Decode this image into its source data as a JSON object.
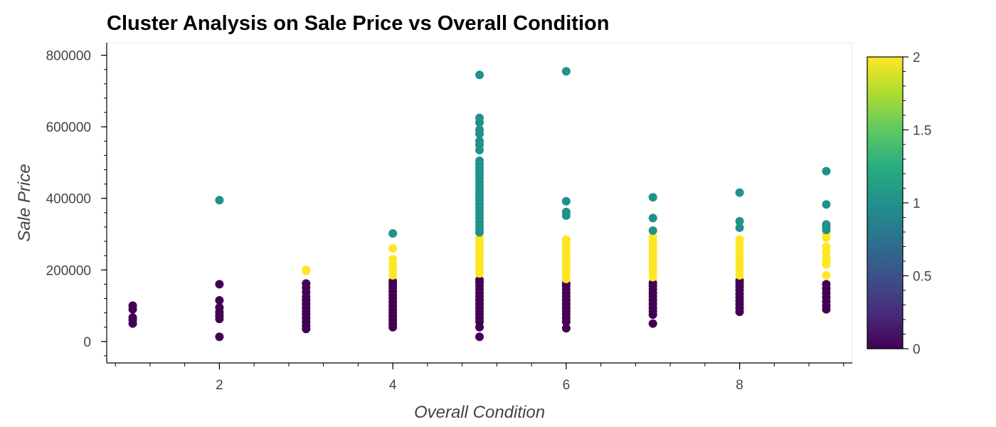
{
  "chart_data": {
    "type": "scatter",
    "title": "Cluster Analysis on Sale Price vs Overall Condition",
    "xlabel": "Overall Condition",
    "ylabel": "Sale Price",
    "xlim": [
      0.7,
      9.3
    ],
    "ylim": [
      -60000,
      835000
    ],
    "x_ticks": [
      2,
      4,
      6,
      8
    ],
    "y_ticks": [
      0,
      200000,
      400000,
      600000,
      800000
    ],
    "grid": false,
    "color_by": "cluster",
    "colormap": "viridis",
    "colorbar": {
      "range": [
        0,
        2
      ],
      "ticks": [
        "0",
        "0.5",
        "1",
        "1.5",
        "2"
      ],
      "placement": "right"
    },
    "cluster_colors": {
      "0": "#440154",
      "1": "#21918c",
      "2": "#fde725"
    },
    "points": [
      {
        "x": 1,
        "y": 50000,
        "cluster": 0
      },
      {
        "x": 1,
        "y": 60000,
        "cluster": 0
      },
      {
        "x": 1,
        "y": 67000,
        "cluster": 0
      },
      {
        "x": 1,
        "y": 90000,
        "cluster": 0
      },
      {
        "x": 1,
        "y": 100000,
        "cluster": 0
      },
      {
        "x": 2,
        "y": 13000,
        "cluster": 0
      },
      {
        "x": 2,
        "y": 63000,
        "cluster": 0
      },
      {
        "x": 2,
        "y": 72000,
        "cluster": 0
      },
      {
        "x": 2,
        "y": 82000,
        "cluster": 0
      },
      {
        "x": 2,
        "y": 95000,
        "cluster": 0
      },
      {
        "x": 2,
        "y": 115000,
        "cluster": 0
      },
      {
        "x": 2,
        "y": 160000,
        "cluster": 0
      },
      {
        "x": 2,
        "y": 395000,
        "cluster": 1
      },
      {
        "x": 3,
        "y": 35000,
        "cluster": 0
      },
      {
        "x": 3,
        "y": 45000,
        "cluster": 0
      },
      {
        "x": 3,
        "y": 55000,
        "cluster": 0
      },
      {
        "x": 3,
        "y": 65000,
        "cluster": 0
      },
      {
        "x": 3,
        "y": 75000,
        "cluster": 0
      },
      {
        "x": 3,
        "y": 85000,
        "cluster": 0
      },
      {
        "x": 3,
        "y": 95000,
        "cluster": 0
      },
      {
        "x": 3,
        "y": 105000,
        "cluster": 0
      },
      {
        "x": 3,
        "y": 115000,
        "cluster": 0
      },
      {
        "x": 3,
        "y": 125000,
        "cluster": 0
      },
      {
        "x": 3,
        "y": 138000,
        "cluster": 0
      },
      {
        "x": 3,
        "y": 150000,
        "cluster": 0
      },
      {
        "x": 3,
        "y": 162000,
        "cluster": 0
      },
      {
        "x": 3,
        "y": 197000,
        "cluster": 2
      },
      {
        "x": 3,
        "y": 200000,
        "cluster": 2
      },
      {
        "x": 4,
        "y": 40000,
        "cluster": 0
      },
      {
        "x": 4,
        "y": 50000,
        "cluster": 0
      },
      {
        "x": 4,
        "y": 60000,
        "cluster": 0
      },
      {
        "x": 4,
        "y": 70000,
        "cluster": 0
      },
      {
        "x": 4,
        "y": 80000,
        "cluster": 0
      },
      {
        "x": 4,
        "y": 90000,
        "cluster": 0
      },
      {
        "x": 4,
        "y": 100000,
        "cluster": 0
      },
      {
        "x": 4,
        "y": 110000,
        "cluster": 0
      },
      {
        "x": 4,
        "y": 120000,
        "cluster": 0
      },
      {
        "x": 4,
        "y": 130000,
        "cluster": 0
      },
      {
        "x": 4,
        "y": 140000,
        "cluster": 0
      },
      {
        "x": 4,
        "y": 150000,
        "cluster": 0
      },
      {
        "x": 4,
        "y": 160000,
        "cluster": 0
      },
      {
        "x": 4,
        "y": 168000,
        "cluster": 0
      },
      {
        "x": 4,
        "y": 185000,
        "cluster": 2
      },
      {
        "x": 4,
        "y": 200000,
        "cluster": 2
      },
      {
        "x": 4,
        "y": 215000,
        "cluster": 2
      },
      {
        "x": 4,
        "y": 230000,
        "cluster": 2
      },
      {
        "x": 4,
        "y": 260000,
        "cluster": 2
      },
      {
        "x": 4,
        "y": 302000,
        "cluster": 1
      },
      {
        "x": 5,
        "y": 13000,
        "cluster": 0
      },
      {
        "x": 5,
        "y": 40000,
        "cluster": 0
      },
      {
        "x": 5,
        "y": 55000,
        "cluster": 0
      },
      {
        "x": 5,
        "y": 65000,
        "cluster": 0
      },
      {
        "x": 5,
        "y": 75000,
        "cluster": 0
      },
      {
        "x": 5,
        "y": 85000,
        "cluster": 0
      },
      {
        "x": 5,
        "y": 95000,
        "cluster": 0
      },
      {
        "x": 5,
        "y": 105000,
        "cluster": 0
      },
      {
        "x": 5,
        "y": 115000,
        "cluster": 0
      },
      {
        "x": 5,
        "y": 125000,
        "cluster": 0
      },
      {
        "x": 5,
        "y": 135000,
        "cluster": 0
      },
      {
        "x": 5,
        "y": 145000,
        "cluster": 0
      },
      {
        "x": 5,
        "y": 155000,
        "cluster": 0
      },
      {
        "x": 5,
        "y": 165000,
        "cluster": 0
      },
      {
        "x": 5,
        "y": 172000,
        "cluster": 0
      },
      {
        "x": 5,
        "y": 190000,
        "cluster": 2
      },
      {
        "x": 5,
        "y": 200000,
        "cluster": 2
      },
      {
        "x": 5,
        "y": 210000,
        "cluster": 2
      },
      {
        "x": 5,
        "y": 220000,
        "cluster": 2
      },
      {
        "x": 5,
        "y": 230000,
        "cluster": 2
      },
      {
        "x": 5,
        "y": 240000,
        "cluster": 2
      },
      {
        "x": 5,
        "y": 250000,
        "cluster": 2
      },
      {
        "x": 5,
        "y": 260000,
        "cluster": 2
      },
      {
        "x": 5,
        "y": 270000,
        "cluster": 2
      },
      {
        "x": 5,
        "y": 280000,
        "cluster": 2
      },
      {
        "x": 5,
        "y": 290000,
        "cluster": 2
      },
      {
        "x": 5,
        "y": 305000,
        "cluster": 1
      },
      {
        "x": 5,
        "y": 315000,
        "cluster": 1
      },
      {
        "x": 5,
        "y": 325000,
        "cluster": 1
      },
      {
        "x": 5,
        "y": 335000,
        "cluster": 1
      },
      {
        "x": 5,
        "y": 345000,
        "cluster": 1
      },
      {
        "x": 5,
        "y": 355000,
        "cluster": 1
      },
      {
        "x": 5,
        "y": 365000,
        "cluster": 1
      },
      {
        "x": 5,
        "y": 375000,
        "cluster": 1
      },
      {
        "x": 5,
        "y": 385000,
        "cluster": 1
      },
      {
        "x": 5,
        "y": 395000,
        "cluster": 1
      },
      {
        "x": 5,
        "y": 405000,
        "cluster": 1
      },
      {
        "x": 5,
        "y": 415000,
        "cluster": 1
      },
      {
        "x": 5,
        "y": 425000,
        "cluster": 1
      },
      {
        "x": 5,
        "y": 435000,
        "cluster": 1
      },
      {
        "x": 5,
        "y": 445000,
        "cluster": 1
      },
      {
        "x": 5,
        "y": 455000,
        "cluster": 1
      },
      {
        "x": 5,
        "y": 465000,
        "cluster": 1
      },
      {
        "x": 5,
        "y": 475000,
        "cluster": 1
      },
      {
        "x": 5,
        "y": 485000,
        "cluster": 1
      },
      {
        "x": 5,
        "y": 495000,
        "cluster": 1
      },
      {
        "x": 5,
        "y": 505000,
        "cluster": 1
      },
      {
        "x": 5,
        "y": 535000,
        "cluster": 1
      },
      {
        "x": 5,
        "y": 550000,
        "cluster": 1
      },
      {
        "x": 5,
        "y": 560000,
        "cluster": 1
      },
      {
        "x": 5,
        "y": 580000,
        "cluster": 1
      },
      {
        "x": 5,
        "y": 592000,
        "cluster": 1
      },
      {
        "x": 5,
        "y": 612000,
        "cluster": 1
      },
      {
        "x": 5,
        "y": 625000,
        "cluster": 1
      },
      {
        "x": 5,
        "y": 745000,
        "cluster": 1
      },
      {
        "x": 6,
        "y": 37000,
        "cluster": 0
      },
      {
        "x": 6,
        "y": 55000,
        "cluster": 0
      },
      {
        "x": 6,
        "y": 65000,
        "cluster": 0
      },
      {
        "x": 6,
        "y": 75000,
        "cluster": 0
      },
      {
        "x": 6,
        "y": 85000,
        "cluster": 0
      },
      {
        "x": 6,
        "y": 95000,
        "cluster": 0
      },
      {
        "x": 6,
        "y": 105000,
        "cluster": 0
      },
      {
        "x": 6,
        "y": 115000,
        "cluster": 0
      },
      {
        "x": 6,
        "y": 125000,
        "cluster": 0
      },
      {
        "x": 6,
        "y": 135000,
        "cluster": 0
      },
      {
        "x": 6,
        "y": 145000,
        "cluster": 0
      },
      {
        "x": 6,
        "y": 155000,
        "cluster": 0
      },
      {
        "x": 6,
        "y": 162000,
        "cluster": 0
      },
      {
        "x": 6,
        "y": 175000,
        "cluster": 2
      },
      {
        "x": 6,
        "y": 185000,
        "cluster": 2
      },
      {
        "x": 6,
        "y": 195000,
        "cluster": 2
      },
      {
        "x": 6,
        "y": 205000,
        "cluster": 2
      },
      {
        "x": 6,
        "y": 215000,
        "cluster": 2
      },
      {
        "x": 6,
        "y": 225000,
        "cluster": 2
      },
      {
        "x": 6,
        "y": 235000,
        "cluster": 2
      },
      {
        "x": 6,
        "y": 245000,
        "cluster": 2
      },
      {
        "x": 6,
        "y": 255000,
        "cluster": 2
      },
      {
        "x": 6,
        "y": 265000,
        "cluster": 2
      },
      {
        "x": 6,
        "y": 275000,
        "cluster": 2
      },
      {
        "x": 6,
        "y": 285000,
        "cluster": 2
      },
      {
        "x": 6,
        "y": 352000,
        "cluster": 1
      },
      {
        "x": 6,
        "y": 362000,
        "cluster": 1
      },
      {
        "x": 6,
        "y": 392000,
        "cluster": 1
      },
      {
        "x": 6,
        "y": 755000,
        "cluster": 1
      },
      {
        "x": 7,
        "y": 50000,
        "cluster": 0
      },
      {
        "x": 7,
        "y": 75000,
        "cluster": 0
      },
      {
        "x": 7,
        "y": 85000,
        "cluster": 0
      },
      {
        "x": 7,
        "y": 95000,
        "cluster": 0
      },
      {
        "x": 7,
        "y": 105000,
        "cluster": 0
      },
      {
        "x": 7,
        "y": 115000,
        "cluster": 0
      },
      {
        "x": 7,
        "y": 125000,
        "cluster": 0
      },
      {
        "x": 7,
        "y": 135000,
        "cluster": 0
      },
      {
        "x": 7,
        "y": 145000,
        "cluster": 0
      },
      {
        "x": 7,
        "y": 155000,
        "cluster": 0
      },
      {
        "x": 7,
        "y": 163000,
        "cluster": 0
      },
      {
        "x": 7,
        "y": 180000,
        "cluster": 2
      },
      {
        "x": 7,
        "y": 190000,
        "cluster": 2
      },
      {
        "x": 7,
        "y": 200000,
        "cluster": 2
      },
      {
        "x": 7,
        "y": 210000,
        "cluster": 2
      },
      {
        "x": 7,
        "y": 220000,
        "cluster": 2
      },
      {
        "x": 7,
        "y": 230000,
        "cluster": 2
      },
      {
        "x": 7,
        "y": 240000,
        "cluster": 2
      },
      {
        "x": 7,
        "y": 250000,
        "cluster": 2
      },
      {
        "x": 7,
        "y": 260000,
        "cluster": 2
      },
      {
        "x": 7,
        "y": 270000,
        "cluster": 2
      },
      {
        "x": 7,
        "y": 280000,
        "cluster": 2
      },
      {
        "x": 7,
        "y": 292000,
        "cluster": 2
      },
      {
        "x": 7,
        "y": 310000,
        "cluster": 1
      },
      {
        "x": 7,
        "y": 345000,
        "cluster": 1
      },
      {
        "x": 7,
        "y": 403000,
        "cluster": 1
      },
      {
        "x": 8,
        "y": 83000,
        "cluster": 0
      },
      {
        "x": 8,
        "y": 93000,
        "cluster": 0
      },
      {
        "x": 8,
        "y": 103000,
        "cluster": 0
      },
      {
        "x": 8,
        "y": 113000,
        "cluster": 0
      },
      {
        "x": 8,
        "y": 123000,
        "cluster": 0
      },
      {
        "x": 8,
        "y": 133000,
        "cluster": 0
      },
      {
        "x": 8,
        "y": 143000,
        "cluster": 0
      },
      {
        "x": 8,
        "y": 153000,
        "cluster": 0
      },
      {
        "x": 8,
        "y": 163000,
        "cluster": 0
      },
      {
        "x": 8,
        "y": 170000,
        "cluster": 0
      },
      {
        "x": 8,
        "y": 185000,
        "cluster": 2
      },
      {
        "x": 8,
        "y": 198000,
        "cluster": 2
      },
      {
        "x": 8,
        "y": 210000,
        "cluster": 2
      },
      {
        "x": 8,
        "y": 222000,
        "cluster": 2
      },
      {
        "x": 8,
        "y": 235000,
        "cluster": 2
      },
      {
        "x": 8,
        "y": 248000,
        "cluster": 2
      },
      {
        "x": 8,
        "y": 260000,
        "cluster": 2
      },
      {
        "x": 8,
        "y": 272000,
        "cluster": 2
      },
      {
        "x": 8,
        "y": 285000,
        "cluster": 2
      },
      {
        "x": 8,
        "y": 318000,
        "cluster": 1
      },
      {
        "x": 8,
        "y": 336000,
        "cluster": 1
      },
      {
        "x": 8,
        "y": 416000,
        "cluster": 1
      },
      {
        "x": 9,
        "y": 90000,
        "cluster": 0
      },
      {
        "x": 9,
        "y": 100000,
        "cluster": 0
      },
      {
        "x": 9,
        "y": 112000,
        "cluster": 0
      },
      {
        "x": 9,
        "y": 124000,
        "cluster": 0
      },
      {
        "x": 9,
        "y": 136000,
        "cluster": 0
      },
      {
        "x": 9,
        "y": 148000,
        "cluster": 0
      },
      {
        "x": 9,
        "y": 160000,
        "cluster": 0
      },
      {
        "x": 9,
        "y": 185000,
        "cluster": 2
      },
      {
        "x": 9,
        "y": 215000,
        "cluster": 2
      },
      {
        "x": 9,
        "y": 225000,
        "cluster": 2
      },
      {
        "x": 9,
        "y": 235000,
        "cluster": 2
      },
      {
        "x": 9,
        "y": 250000,
        "cluster": 2
      },
      {
        "x": 9,
        "y": 265000,
        "cluster": 2
      },
      {
        "x": 9,
        "y": 290000,
        "cluster": 2
      },
      {
        "x": 9,
        "y": 302000,
        "cluster": 2
      },
      {
        "x": 9,
        "y": 312000,
        "cluster": 1
      },
      {
        "x": 9,
        "y": 320000,
        "cluster": 1
      },
      {
        "x": 9,
        "y": 327000,
        "cluster": 1
      },
      {
        "x": 9,
        "y": 383000,
        "cluster": 1
      },
      {
        "x": 9,
        "y": 476000,
        "cluster": 1
      }
    ]
  }
}
